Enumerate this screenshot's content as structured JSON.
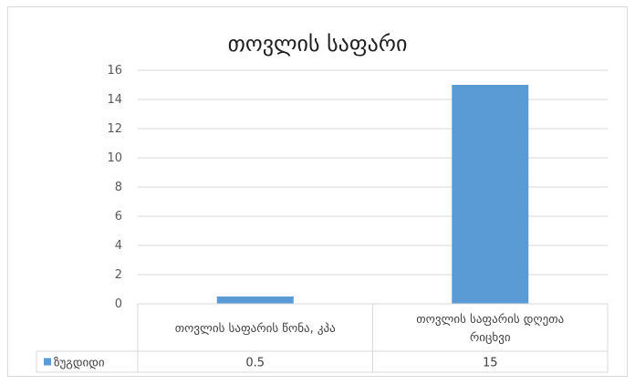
{
  "chart_data": {
    "type": "bar",
    "title": "თოვლის საფარი",
    "categories": [
      [
        "თოვლის საფარის წონა, კპა"
      ],
      [
        "თოვლის საფარის დღეთა",
        "რიცხვი"
      ]
    ],
    "series": [
      {
        "name": "ზუგდიდი",
        "values": [
          0.5,
          15
        ],
        "value_labels": [
          "0.5",
          "15"
        ],
        "color": "#5b9bd5"
      }
    ],
    "ylim": [
      0,
      16
    ],
    "yticks": [
      0,
      2,
      4,
      6,
      8,
      10,
      12,
      14,
      16
    ],
    "grid": true,
    "legend": "data-table",
    "data_table": true
  }
}
